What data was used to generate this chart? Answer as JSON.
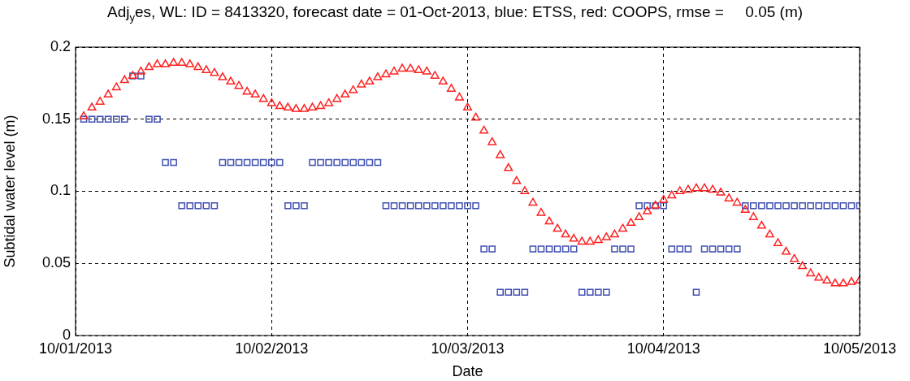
{
  "chart_data": {
    "type": "scatter",
    "title": "Adj$_{y}$es, WL: ID = 8413320, forecast date = 01-Oct-2013, blue: ETSS, red: COOPS, rmse =     0.05 (m)",
    "xlabel": "Date",
    "ylabel": "Subtidal water level (m)",
    "x": [
      "2013-10-01T01:00",
      "2013-10-01T02:00",
      "2013-10-01T03:00",
      "2013-10-01T04:00",
      "2013-10-01T05:00",
      "2013-10-01T06:00",
      "2013-10-01T07:00",
      "2013-10-01T08:00",
      "2013-10-01T09:00",
      "2013-10-01T10:00",
      "2013-10-01T11:00",
      "2013-10-01T12:00",
      "2013-10-01T13:00",
      "2013-10-01T14:00",
      "2013-10-01T15:00",
      "2013-10-01T16:00",
      "2013-10-01T17:00",
      "2013-10-01T18:00",
      "2013-10-01T19:00",
      "2013-10-01T20:00",
      "2013-10-01T21:00",
      "2013-10-01T22:00",
      "2013-10-01T23:00",
      "2013-10-02T00:00",
      "2013-10-02T01:00",
      "2013-10-02T02:00",
      "2013-10-02T03:00",
      "2013-10-02T04:00",
      "2013-10-02T05:00",
      "2013-10-02T06:00",
      "2013-10-02T07:00",
      "2013-10-02T08:00",
      "2013-10-02T09:00",
      "2013-10-02T10:00",
      "2013-10-02T11:00",
      "2013-10-02T12:00",
      "2013-10-02T13:00",
      "2013-10-02T14:00",
      "2013-10-02T15:00",
      "2013-10-02T16:00",
      "2013-10-02T17:00",
      "2013-10-02T18:00",
      "2013-10-02T19:00",
      "2013-10-02T20:00",
      "2013-10-02T21:00",
      "2013-10-02T22:00",
      "2013-10-02T23:00",
      "2013-10-03T00:00",
      "2013-10-03T01:00",
      "2013-10-03T02:00",
      "2013-10-03T03:00",
      "2013-10-03T04:00",
      "2013-10-03T05:00",
      "2013-10-03T06:00",
      "2013-10-03T07:00",
      "2013-10-03T08:00",
      "2013-10-03T09:00",
      "2013-10-03T10:00",
      "2013-10-03T11:00",
      "2013-10-03T12:00",
      "2013-10-03T13:00",
      "2013-10-03T14:00",
      "2013-10-03T15:00",
      "2013-10-03T16:00",
      "2013-10-03T17:00",
      "2013-10-03T18:00",
      "2013-10-03T19:00",
      "2013-10-03T20:00",
      "2013-10-03T21:00",
      "2013-10-03T22:00",
      "2013-10-03T23:00",
      "2013-10-04T00:00",
      "2013-10-04T01:00",
      "2013-10-04T02:00",
      "2013-10-04T03:00",
      "2013-10-04T04:00",
      "2013-10-04T05:00",
      "2013-10-04T06:00",
      "2013-10-04T07:00",
      "2013-10-04T08:00",
      "2013-10-04T09:00",
      "2013-10-04T10:00",
      "2013-10-04T11:00",
      "2013-10-04T12:00",
      "2013-10-04T13:00",
      "2013-10-04T14:00",
      "2013-10-04T15:00",
      "2013-10-04T16:00",
      "2013-10-04T17:00",
      "2013-10-04T18:00",
      "2013-10-04T19:00",
      "2013-10-04T20:00",
      "2013-10-04T21:00",
      "2013-10-04T22:00",
      "2013-10-04T23:00",
      "2013-10-05T00:00"
    ],
    "xlim": [
      "2013-10-01",
      "2013-10-05"
    ],
    "xticks": [
      {
        "value": "2013-10-01",
        "label": "10/01/2013"
      },
      {
        "value": "2013-10-02",
        "label": "10/02/2013"
      },
      {
        "value": "2013-10-03",
        "label": "10/03/2013"
      },
      {
        "value": "2013-10-04",
        "label": "10/04/2013"
      },
      {
        "value": "2013-10-05",
        "label": "10/05/2013"
      }
    ],
    "ylim": [
      0,
      0.2
    ],
    "yticks": [
      0,
      0.05,
      0.1,
      0.15,
      0.2
    ],
    "grid": true,
    "series": [
      {
        "color": "#3f4fb0",
        "marker": "square",
        "values": [
          0.15,
          0.15,
          0.15,
          0.15,
          0.15,
          0.15,
          0.18,
          0.18,
          0.15,
          0.15,
          0.12,
          0.12,
          0.09,
          0.09,
          0.09,
          0.09,
          0.09,
          0.12,
          0.12,
          0.12,
          0.12,
          0.12,
          0.12,
          0.12,
          0.12,
          0.09,
          0.09,
          0.09,
          0.12,
          0.12,
          0.12,
          0.12,
          0.12,
          0.12,
          0.12,
          0.12,
          0.12,
          0.09,
          0.09,
          0.09,
          0.09,
          0.09,
          0.09,
          0.09,
          0.09,
          0.09,
          0.09,
          0.09,
          0.09,
          0.06,
          0.06,
          0.03,
          0.03,
          0.03,
          0.03,
          0.06,
          0.06,
          0.06,
          0.06,
          0.06,
          0.06,
          0.03,
          0.03,
          0.03,
          0.03,
          0.06,
          0.06,
          0.06,
          0.09,
          0.09,
          0.09,
          0.09,
          0.06,
          0.06,
          0.06,
          0.03,
          0.06,
          0.06,
          0.06,
          0.06,
          0.06,
          0.09,
          0.09,
          0.09,
          0.09,
          0.09,
          0.09,
          0.09,
          0.09,
          0.09,
          0.09,
          0.09,
          0.09,
          0.09,
          0.09,
          0.09
        ]
      },
      {
        "color": "#ff2020",
        "marker": "triangle",
        "values": [
          0.152,
          0.158,
          0.162,
          0.167,
          0.172,
          0.177,
          0.18,
          0.183,
          0.186,
          0.188,
          0.188,
          0.189,
          0.189,
          0.188,
          0.186,
          0.184,
          0.182,
          0.179,
          0.176,
          0.173,
          0.169,
          0.167,
          0.164,
          0.161,
          0.159,
          0.158,
          0.157,
          0.157,
          0.158,
          0.159,
          0.161,
          0.164,
          0.167,
          0.17,
          0.174,
          0.176,
          0.179,
          0.181,
          0.183,
          0.185,
          0.185,
          0.184,
          0.183,
          0.18,
          0.176,
          0.171,
          0.165,
          0.158,
          0.151,
          0.142,
          0.134,
          0.125,
          0.116,
          0.107,
          0.1,
          0.092,
          0.085,
          0.079,
          0.074,
          0.07,
          0.067,
          0.065,
          0.065,
          0.066,
          0.068,
          0.07,
          0.074,
          0.078,
          0.082,
          0.086,
          0.09,
          0.094,
          0.097,
          0.1,
          0.101,
          0.102,
          0.102,
          0.101,
          0.099,
          0.095,
          0.092,
          0.087,
          0.082,
          0.076,
          0.07,
          0.064,
          0.058,
          0.053,
          0.048,
          0.043,
          0.04,
          0.038,
          0.036,
          0.036,
          0.037,
          0.038
        ]
      }
    ]
  }
}
